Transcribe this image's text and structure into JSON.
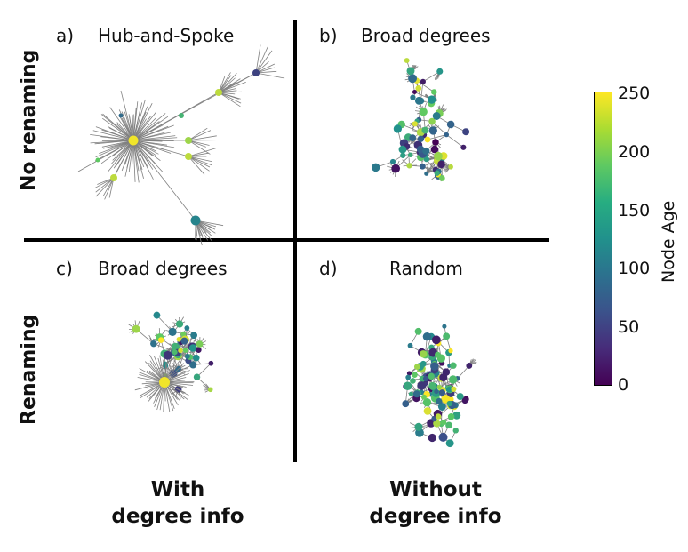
{
  "rows": [
    "No renaming",
    "Renaming"
  ],
  "columns": [
    "With\ndegree info",
    "Without\ndegree info"
  ],
  "panels": [
    {
      "label": "a)",
      "title": "Hub-and-Spoke"
    },
    {
      "label": "b)",
      "title": "Broad degrees"
    },
    {
      "label": "c)",
      "title": "Broad degrees"
    },
    {
      "label": "d)",
      "title": "Random"
    }
  ],
  "colorbar": {
    "title": "Node Age",
    "ticks": [
      "250",
      "200",
      "150",
      "100",
      "50",
      "0"
    ],
    "colormap": "viridis",
    "colors": [
      "#440154",
      "#3b528b",
      "#21918c",
      "#5ec962",
      "#fde725"
    ]
  },
  "colors": {
    "edge": "#808080",
    "divider": "#000000"
  }
}
